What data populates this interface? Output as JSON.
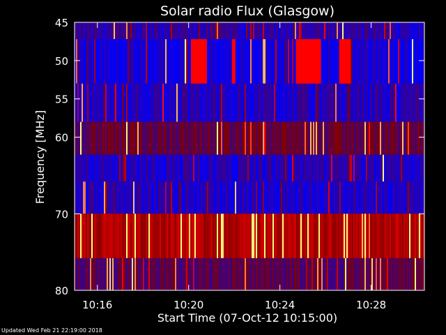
{
  "chart_data": {
    "type": "heatmap",
    "title": "Solar radio Flux (Glasgow)",
    "xlabel": "Start Time (07-Oct-12 10:15:00)",
    "ylabel": "Frequency [MHz]",
    "x_range": [
      "10:15:00",
      "10:30:20"
    ],
    "y_range": [
      45,
      80
    ],
    "y_inverted": true,
    "x_ticks": [
      {
        "label": "10:16",
        "minutes": 1
      },
      {
        "label": "10:20",
        "minutes": 5
      },
      {
        "label": "10:24",
        "minutes": 9
      },
      {
        "label": "10:28",
        "minutes": 13
      }
    ],
    "y_ticks": [
      45,
      50,
      55,
      60,
      70,
      80
    ],
    "bands_mhz": [
      {
        "from": 45.0,
        "to": 47.2,
        "intensity": 0.15
      },
      {
        "from": 47.2,
        "to": 53.0,
        "intensity": 0.05
      },
      {
        "from": 53.0,
        "to": 58.0,
        "intensity": 0.12
      },
      {
        "from": 58.0,
        "to": 62.3,
        "intensity": 0.35
      },
      {
        "from": 62.3,
        "to": 65.8,
        "intensity": 0.12
      },
      {
        "from": 65.8,
        "to": 70.0,
        "intensity": 0.1
      },
      {
        "from": 70.0,
        "to": 75.8,
        "intensity": 0.6
      },
      {
        "from": 75.8,
        "to": 80.0,
        "intensity": 0.3
      }
    ],
    "bursts": [
      {
        "start_min": 5.1,
        "end_min": 5.8,
        "from_mhz": 47.2,
        "to_mhz": 53.0
      },
      {
        "start_min": 6.9,
        "end_min": 7.05,
        "from_mhz": 47.2,
        "to_mhz": 53.0
      },
      {
        "start_min": 9.7,
        "end_min": 10.8,
        "from_mhz": 47.2,
        "to_mhz": 53.0
      },
      {
        "start_min": 11.6,
        "end_min": 12.1,
        "from_mhz": 47.2,
        "to_mhz": 53.0
      }
    ],
    "colorscale": [
      "#0000ff",
      "#7f0000",
      "#ff0000",
      "#ffff80"
    ],
    "grid": false
  },
  "footer": {
    "updated": "Updated Wed Feb 21 22:19:00 2018"
  }
}
